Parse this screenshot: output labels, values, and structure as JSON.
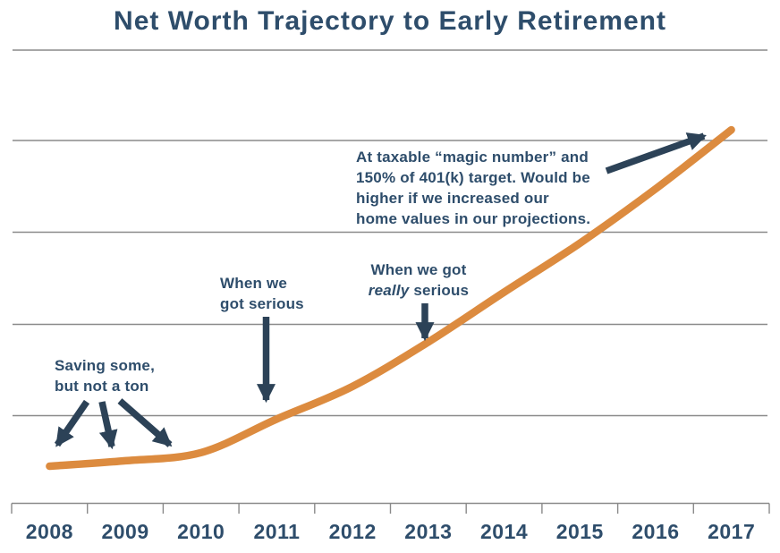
{
  "colors": {
    "navy_text": "#2e4d6b",
    "arrow_navy": "#2c4257",
    "line_orange": "#dc8b3f",
    "gridline_gray": "#8a8a8a",
    "background": "#ffffff"
  },
  "chart_data": {
    "type": "line",
    "title": "Net Worth Trajectory to Early Retirement",
    "x": [
      2008,
      2009,
      2010,
      2011,
      2012,
      2013,
      2014,
      2015,
      2016,
      2017
    ],
    "series": [
      {
        "name": "Net worth",
        "color": "#dc8b3f",
        "values": [
          0.41,
          0.47,
          0.56,
          0.93,
          1.29,
          1.78,
          2.33,
          2.87,
          3.47,
          4.12
        ]
      }
    ],
    "xlabel": "",
    "ylabel": "",
    "y_axis": {
      "tick_labels_visible": false,
      "units": "relative units; 1 unit = one horizontal gridline spacing (y-axis unlabeled in image)",
      "ylim": [
        0,
        5
      ],
      "gridline_count": 5
    },
    "grid": "horizontal gridlines only",
    "legend": "none",
    "annotations": [
      {
        "text": "Saving some,\nbut not a ton",
        "target": "flat start of curve, 2008–2010",
        "arrow_count": 3
      },
      {
        "text": "When we\ngot serious",
        "target": "curve upturn near 2011",
        "arrow_count": 1
      },
      {
        "line1": "When we got",
        "emphasis": "really",
        "line2_rest": " serious",
        "target": "steeper curve near 2013",
        "arrow_count": 1
      },
      {
        "text": "At taxable “magic number” and\n150% of 401(k) target. Would be\nhigher if we increased our\nhome values in our projections.",
        "target": "top of curve at 2017",
        "arrow_count": 1
      }
    ]
  }
}
